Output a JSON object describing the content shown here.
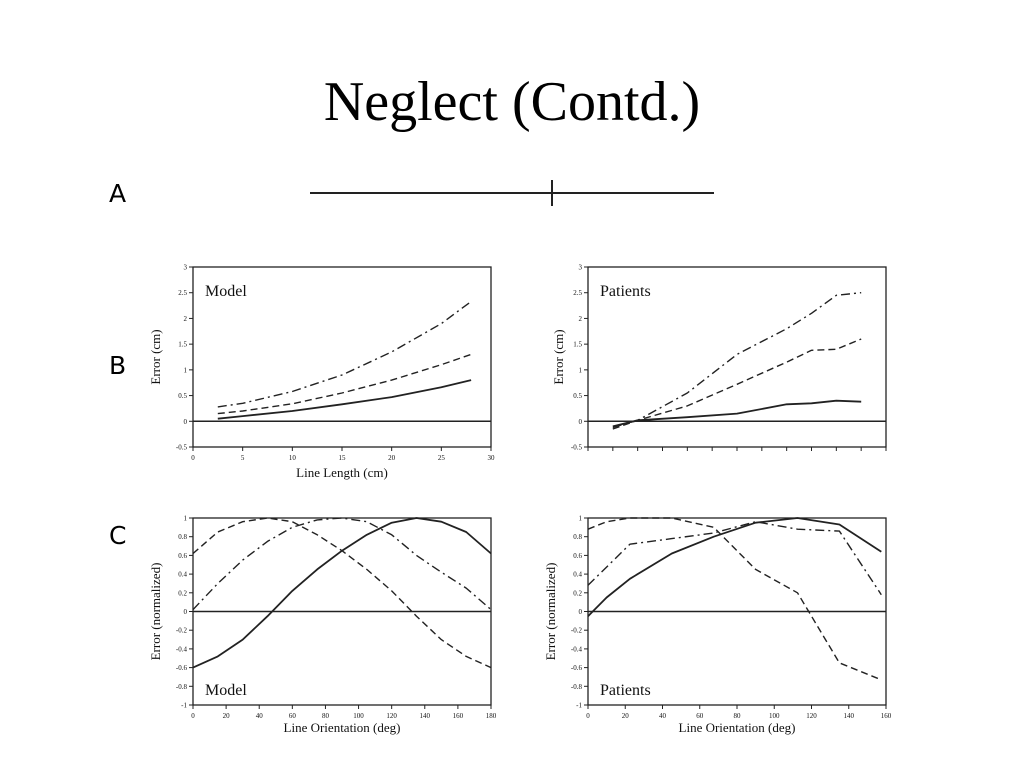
{
  "slide": {
    "title": "Neglect (Contd.)",
    "panel_letters": {
      "a": "A",
      "b": "B",
      "c": "C"
    }
  },
  "chart_data": [
    {
      "id": "b-model",
      "type": "line",
      "panel": "B",
      "inset_label": "Model",
      "xlabel": "Line Length (cm)",
      "ylabel": "Error (cm)",
      "xlim": [
        0,
        30
      ],
      "ylim": [
        -0.5,
        3
      ],
      "xticks": [
        "0",
        "5",
        "10",
        "15",
        "20",
        "25",
        "30"
      ],
      "yticks": [
        "-0.5",
        "0",
        "0.5",
        "1",
        "1.5",
        "2",
        "2.5",
        "3"
      ],
      "hline": 0,
      "grid": false,
      "series": [
        {
          "style": "solid",
          "x": [
            2.5,
            5,
            10,
            15,
            20,
            25,
            28
          ],
          "y": [
            0.05,
            0.1,
            0.2,
            0.33,
            0.47,
            0.66,
            0.8
          ]
        },
        {
          "style": "dashed",
          "x": [
            2.5,
            5,
            10,
            15,
            20,
            25,
            28
          ],
          "y": [
            0.15,
            0.2,
            0.34,
            0.55,
            0.8,
            1.1,
            1.3
          ]
        },
        {
          "style": "dashdot",
          "x": [
            2.5,
            5,
            10,
            15,
            20,
            25,
            28
          ],
          "y": [
            0.28,
            0.35,
            0.58,
            0.9,
            1.35,
            1.9,
            2.33
          ]
        }
      ]
    },
    {
      "id": "b-patients",
      "type": "line",
      "panel": "B",
      "inset_label": "Patients",
      "xlabel": "",
      "ylabel": "Error (cm)",
      "xlim": [
        0,
        30
      ],
      "ylim": [
        -0.5,
        3
      ],
      "xticks": [],
      "yticks": [
        "-0.5",
        "0",
        "0.5",
        "1",
        "1.5",
        "2",
        "2.5",
        "3"
      ],
      "hline": 0,
      "grid": false,
      "series": [
        {
          "style": "solid",
          "x": [
            2.5,
            5,
            10,
            15,
            20,
            22.5,
            25,
            27.5
          ],
          "y": [
            -0.1,
            0.02,
            0.08,
            0.15,
            0.33,
            0.35,
            0.4,
            0.38
          ]
        },
        {
          "style": "dashed",
          "x": [
            2.5,
            5,
            10,
            15,
            20,
            22.5,
            25,
            27.5
          ],
          "y": [
            -0.15,
            0.02,
            0.3,
            0.72,
            1.15,
            1.38,
            1.4,
            1.6
          ]
        },
        {
          "style": "dashdot",
          "x": [
            2.5,
            5,
            10,
            15,
            20,
            22.5,
            25,
            27.5
          ],
          "y": [
            -0.12,
            0.02,
            0.55,
            1.3,
            1.8,
            2.1,
            2.45,
            2.5
          ]
        }
      ]
    },
    {
      "id": "c-model",
      "type": "line",
      "panel": "C",
      "inset_label": "Model",
      "xlabel": "Line Orientation (deg)",
      "ylabel": "Error (normalized)",
      "xlim": [
        0,
        180
      ],
      "ylim": [
        -1,
        1
      ],
      "xticks": [
        "0",
        "20",
        "40",
        "60",
        "80",
        "100",
        "120",
        "140",
        "160",
        "180"
      ],
      "yticks": [
        "-1",
        "-0.8",
        "-0.6",
        "-0.4",
        "-0.2",
        "0",
        "0.2",
        "0.4",
        "0.6",
        "0.8",
        "1"
      ],
      "hline": 0,
      "grid": false,
      "series": [
        {
          "style": "solid",
          "x": [
            0,
            15,
            30,
            45,
            60,
            75,
            90,
            105,
            120,
            135,
            150,
            165,
            180
          ],
          "y": [
            -0.6,
            -0.48,
            -0.3,
            -0.05,
            0.22,
            0.45,
            0.65,
            0.82,
            0.95,
            1.0,
            0.96,
            0.85,
            0.62
          ]
        },
        {
          "style": "dashed",
          "x": [
            0,
            15,
            30,
            45,
            60,
            75,
            90,
            105,
            120,
            135,
            150,
            165,
            180
          ],
          "y": [
            0.62,
            0.85,
            0.96,
            1.0,
            0.96,
            0.82,
            0.65,
            0.45,
            0.22,
            -0.05,
            -0.3,
            -0.48,
            -0.6
          ]
        },
        {
          "style": "dashdot",
          "x": [
            0,
            15,
            30,
            45,
            60,
            75,
            90,
            105,
            120,
            135,
            150,
            165,
            180
          ],
          "y": [
            0.02,
            0.3,
            0.55,
            0.75,
            0.9,
            0.98,
            1.0,
            0.96,
            0.82,
            0.6,
            0.42,
            0.25,
            0.02
          ]
        }
      ]
    },
    {
      "id": "c-patients",
      "type": "line",
      "panel": "C",
      "inset_label": "Patients",
      "xlabel": "Line Orientation (deg)",
      "ylabel": "Error (normalized)",
      "xlim": [
        0,
        160
      ],
      "ylim": [
        -1,
        1
      ],
      "xticks": [
        "0",
        "20",
        "40",
        "60",
        "80",
        "100",
        "120",
        "140",
        "160"
      ],
      "yticks": [
        "-1",
        "-0.8",
        "-0.6",
        "-0.4",
        "-0.2",
        "0",
        "0.2",
        "0.4",
        "0.6",
        "0.8",
        "1"
      ],
      "hline": 0,
      "grid": false,
      "series": [
        {
          "style": "solid",
          "x": [
            0,
            10,
            22.5,
            45,
            67.5,
            90,
            112.5,
            135,
            157.5
          ],
          "y": [
            -0.05,
            0.15,
            0.35,
            0.62,
            0.8,
            0.95,
            1.0,
            0.93,
            0.64
          ]
        },
        {
          "style": "dashed",
          "x": [
            0,
            10,
            22.5,
            45,
            67.5,
            90,
            112.5,
            120,
            135,
            157.5
          ],
          "y": [
            0.88,
            0.96,
            1.0,
            1.0,
            0.9,
            0.45,
            0.2,
            -0.05,
            -0.55,
            -0.73
          ]
        },
        {
          "style": "dashdot",
          "x": [
            0,
            22.5,
            45,
            67.5,
            90,
            112.5,
            135,
            157.5
          ],
          "y": [
            0.28,
            0.72,
            0.78,
            0.84,
            0.96,
            0.88,
            0.86,
            0.18
          ]
        }
      ]
    }
  ]
}
